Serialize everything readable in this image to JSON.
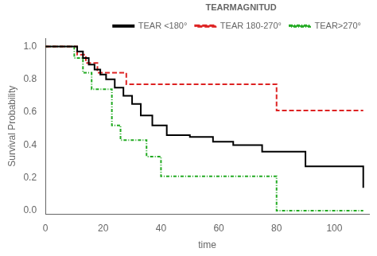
{
  "chart_data": {
    "type": "step",
    "xlabel": "time",
    "ylabel": "Survival Probability",
    "xlim": [
      0,
      112
    ],
    "ylim": [
      -0.02,
      1.05
    ],
    "xticks": [
      0,
      20,
      40,
      60,
      80,
      100
    ],
    "yticks": [
      {
        "value": 0.0,
        "label": "0.0"
      },
      0.2,
      0.4,
      0.6,
      0.8,
      {
        "value": 1.0,
        "label": "1.0"
      }
    ],
    "grid": false,
    "legend": "upper right",
    "legend_title": "TEARMAGNITUD",
    "series": [
      {
        "name": "TEAR <180°",
        "color": "#000000",
        "line_style": "solid",
        "x": [
          0,
          9,
          11,
          13,
          15,
          17,
          19,
          21,
          24,
          27,
          30,
          33,
          37,
          42,
          50,
          58,
          65,
          75,
          90,
          105,
          110
        ],
        "values": [
          1.0,
          1.0,
          0.97,
          0.93,
          0.89,
          0.86,
          0.83,
          0.8,
          0.75,
          0.7,
          0.65,
          0.58,
          0.52,
          0.46,
          0.45,
          0.42,
          0.4,
          0.36,
          0.27,
          0.27,
          0.14
        ]
      },
      {
        "name": "TEAR 180-270°",
        "color": "#dd2222",
        "line_style": "dashed",
        "x": [
          0,
          9,
          11,
          14,
          18,
          28,
          40,
          78,
          80,
          110
        ],
        "values": [
          1.0,
          1.0,
          0.95,
          0.9,
          0.84,
          0.77,
          0.77,
          0.77,
          0.61,
          0.61
        ]
      },
      {
        "name": "TEAR>270°",
        "color": "#22aa22",
        "line_style": "dashdot",
        "x": [
          0,
          7,
          10,
          13,
          16,
          20,
          23,
          26,
          30,
          35,
          40,
          42,
          78,
          80,
          110
        ],
        "values": [
          1.0,
          1.0,
          0.93,
          0.84,
          0.74,
          0.74,
          0.52,
          0.43,
          0.43,
          0.33,
          0.21,
          0.21,
          0.21,
          0.0,
          0.0
        ]
      }
    ]
  }
}
